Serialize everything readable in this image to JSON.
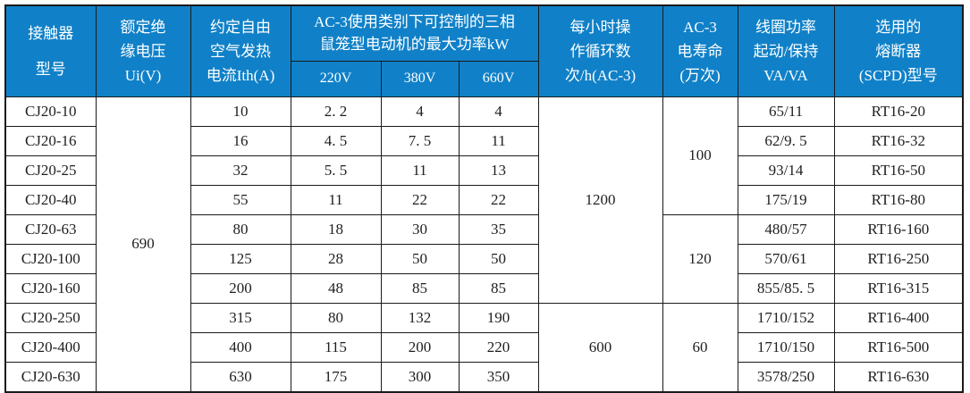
{
  "colors": {
    "header_bg": "#1081c8",
    "header_text": "#ffffff",
    "border": "#1a1a1a",
    "body_text": "#1f1f1f",
    "body_bg": "#ffffff"
  },
  "table": {
    "header": {
      "model": [
        "接触器",
        "型号"
      ],
      "ui": [
        "额定绝",
        "缘电压",
        "Ui(V)"
      ],
      "ith": [
        "约定自由",
        "空气发热",
        "电流Ith(A)"
      ],
      "ac3_group": [
        "AC-3使用类别下可控制的三相",
        "鼠笼型电动机的最大功率kW"
      ],
      "v220": "220V",
      "v380": "380V",
      "v660": "660V",
      "cycles": [
        "每小时操",
        "作循环数",
        "次/h(AC-3)"
      ],
      "life": [
        "AC-3",
        "电寿命",
        "(万次)"
      ],
      "coil": [
        "线圈功率",
        "起动/保持",
        "VA/VA"
      ],
      "fuse": [
        "选用的",
        "熔断器",
        "(SCPD)型号"
      ]
    },
    "rows": [
      {
        "model": "CJ20-10",
        "ith": "10",
        "p220": "2. 2",
        "p380": "4",
        "p660": "4",
        "coil": "65/11",
        "fuse": "RT16-20"
      },
      {
        "model": "CJ20-16",
        "ith": "16",
        "p220": "4. 5",
        "p380": "7. 5",
        "p660": "11",
        "coil": "62/9. 5",
        "fuse": "RT16-32"
      },
      {
        "model": "CJ20-25",
        "ith": "32",
        "p220": "5. 5",
        "p380": "11",
        "p660": "13",
        "coil": "93/14",
        "fuse": "RT16-50"
      },
      {
        "model": "CJ20-40",
        "ith": "55",
        "p220": "11",
        "p380": "22",
        "p660": "22",
        "coil": "175/19",
        "fuse": "RT16-80"
      },
      {
        "model": "CJ20-63",
        "ith": "80",
        "p220": "18",
        "p380": "30",
        "p660": "35",
        "coil": "480/57",
        "fuse": "RT16-160"
      },
      {
        "model": "CJ20-100",
        "ith": "125",
        "p220": "28",
        "p380": "50",
        "p660": "50",
        "coil": "570/61",
        "fuse": "RT16-250"
      },
      {
        "model": "CJ20-160",
        "ith": "200",
        "p220": "48",
        "p380": "85",
        "p660": "85",
        "coil": "855/85. 5",
        "fuse": "RT16-315"
      },
      {
        "model": "CJ20-250",
        "ith": "315",
        "p220": "80",
        "p380": "132",
        "p660": "190",
        "coil": "1710/152",
        "fuse": "RT16-400"
      },
      {
        "model": "CJ20-400",
        "ith": "400",
        "p220": "115",
        "p380": "200",
        "p660": "220",
        "coil": "1710/150",
        "fuse": "RT16-500"
      },
      {
        "model": "CJ20-630",
        "ith": "630",
        "p220": "175",
        "p380": "300",
        "p660": "350",
        "coil": "3578/250",
        "fuse": "RT16-630"
      }
    ],
    "merges": [
      {
        "col": "ui",
        "value": "690",
        "start": 0,
        "span": 10
      },
      {
        "col": "cycles",
        "value": "1200",
        "start": 0,
        "span": 7
      },
      {
        "col": "cycles",
        "value": "600",
        "start": 7,
        "span": 3
      },
      {
        "col": "life",
        "value": "100",
        "start": 0,
        "span": 4
      },
      {
        "col": "life",
        "value": "120",
        "start": 4,
        "span": 3
      },
      {
        "col": "life",
        "value": "60",
        "start": 7,
        "span": 3
      }
    ]
  }
}
